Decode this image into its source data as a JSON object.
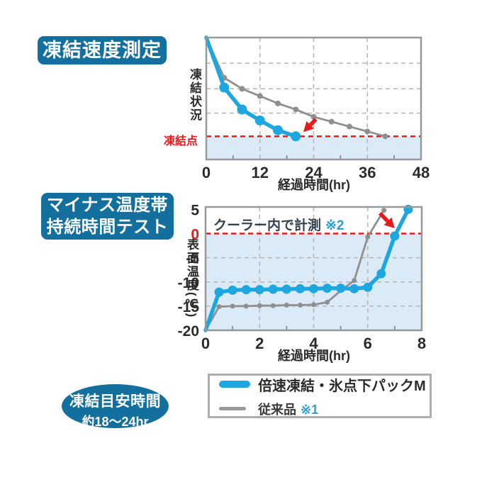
{
  "colors": {
    "badge_bg": "#136f9e",
    "badge_text": "#ffffff",
    "product_blue": "#1ea7de",
    "conventional_gray": "#8f8f8f",
    "red_line": "#e61c1c",
    "below_zero_fill": "#daeaf6",
    "grid_gray": "#b5b5b5",
    "plot_border": "#95999c",
    "text_dark": "#2b2b2b",
    "note_blue": "#2a9fd0",
    "legend_border": "#adadad"
  },
  "freeze_speed_section": {
    "badge": "凍結速度測定",
    "ylabel": "凍結状況",
    "freeze_point_label": "凍結点",
    "xlabel": "経過時間(hr)"
  },
  "minus_temp_section": {
    "badge_line1": "マイナス温度帯",
    "badge_line2": "持続時間テスト",
    "ylabel": "表面温度(℃)",
    "xlabel": "経過時間(hr)",
    "annotation": "クーラー内で計測",
    "annotation_note": "※2"
  },
  "legend": {
    "item1": "倍速凍結・氷点下パックM",
    "item2": "従来品",
    "item2_note": "※1"
  },
  "freeze_time_badge": {
    "line1": "凍結目安時間",
    "line2": "約18〜24hr"
  },
  "chart_data": [
    {
      "type": "line",
      "title": "凍結速度測定",
      "xlabel": "経過時間(hr)",
      "ylabel": "凍結状況",
      "xlim": [
        0,
        48
      ],
      "ylim": [
        0,
        100
      ],
      "x_ticks": [
        0,
        12,
        24,
        36,
        48
      ],
      "minor_x_ticks": [
        6,
        18,
        30,
        42
      ],
      "y_ticks": [],
      "h_gridlines": [
        79,
        58,
        38
      ],
      "v_gridlines": [
        12,
        24,
        36
      ],
      "red_dashed_line_y": 19,
      "red_line_label": "凍結点",
      "fill_below_y": 19,
      "grid_on": true,
      "series": [
        {
          "name": "倍速凍結・氷点下パックM",
          "color": "#1ea7de",
          "line_width": 5.5,
          "marker_r": 7,
          "points": [
            [
              0,
              100
            ],
            [
              4,
              59
            ],
            [
              8,
              41
            ],
            [
              12,
              32
            ],
            [
              16,
              24
            ],
            [
              20,
              19
            ]
          ]
        },
        {
          "name": "従来品",
          "color": "#8f8f8f",
          "line_width": 2.8,
          "marker_r": 4,
          "points": [
            [
              0,
              100
            ],
            [
              4,
              67
            ],
            [
              8,
              58
            ],
            [
              12,
              52
            ],
            [
              16,
              46
            ],
            [
              20,
              41
            ],
            [
              24,
              35
            ],
            [
              28,
              31
            ],
            [
              32,
              27
            ],
            [
              36,
              23
            ],
            [
              40,
              19
            ]
          ]
        }
      ],
      "arrow": {
        "color": "#e61c1c",
        "from": [
          24.5,
          33
        ],
        "to": [
          21.7,
          22.5
        ]
      }
    },
    {
      "type": "line",
      "title": "マイナス温度帯持続時間テスト",
      "xlabel": "経過時間(hr)",
      "ylabel": "表面温度(℃)",
      "annotation": "クーラー内で計測 ※2",
      "xlim": [
        0,
        8
      ],
      "ylim": [
        -20,
        5.5
      ],
      "x_ticks": [
        0,
        2,
        4,
        6,
        8
      ],
      "minor_x_ticks": [
        1,
        3,
        5,
        7
      ],
      "y_ticks": [
        5,
        0,
        -5,
        -10,
        -15,
        -20
      ],
      "red_y_tick": 0,
      "h_gridlines": [
        -5,
        -10,
        -15
      ],
      "v_gridlines": [
        2,
        4,
        6
      ],
      "red_dashed_line_y": 0,
      "fill_below_y": 0,
      "grid_on": true,
      "series": [
        {
          "name": "倍速凍結・氷点下パックM",
          "color": "#1ea7de",
          "line_width": 5.5,
          "marker_r": 6.5,
          "points": [
            [
              0,
              -20
            ],
            [
              0.5,
              -12.1
            ],
            [
              1,
              -11.7
            ],
            [
              1.5,
              -11.6
            ],
            [
              2,
              -11.6
            ],
            [
              2.5,
              -11.5
            ],
            [
              3,
              -11.5
            ],
            [
              3.5,
              -11.4
            ],
            [
              4,
              -11.4
            ],
            [
              4.5,
              -11.3
            ],
            [
              5,
              -11.3
            ],
            [
              5.5,
              -11.4
            ],
            [
              6,
              -11.1
            ],
            [
              6.5,
              -8.3
            ],
            [
              7,
              -0.5
            ],
            [
              7.5,
              5
            ]
          ]
        },
        {
          "name": "従来品",
          "color": "#8f8f8f",
          "line_width": 2.8,
          "marker_r": 3.5,
          "points": [
            [
              0,
              -20
            ],
            [
              0.5,
              -15.1
            ],
            [
              1,
              -15
            ],
            [
              1.5,
              -15
            ],
            [
              2,
              -14.9
            ],
            [
              2.5,
              -14.9
            ],
            [
              3,
              -14.8
            ],
            [
              3.5,
              -14.8
            ],
            [
              4,
              -14.7
            ],
            [
              4.5,
              -14.2
            ],
            [
              5,
              -11.8
            ],
            [
              5.5,
              -9.7
            ],
            [
              6,
              -0.7
            ],
            [
              6.6,
              4.8
            ]
          ]
        }
      ],
      "arrow": {
        "color": "#e61c1c",
        "from": [
          6.45,
          4.2
        ],
        "to": [
          7.0,
          1.1
        ]
      }
    }
  ]
}
